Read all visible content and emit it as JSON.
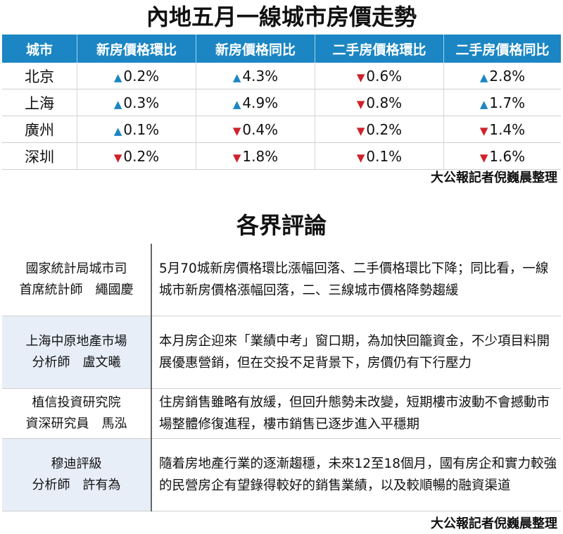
{
  "price_title": "內地五月一線城市房價走勢",
  "price_table": {
    "headers": [
      "城市",
      "新房價格環比",
      "新房價格同比",
      "二手房價格環比",
      "二手房價格同比"
    ],
    "rows": [
      {
        "city": "北京",
        "cells": [
          {
            "dir": "▲",
            "value": "0.2%"
          },
          {
            "dir": "▲",
            "value": "4.3%"
          },
          {
            "dir": "▼",
            "value": "0.6%"
          },
          {
            "dir": "▲",
            "value": "2.8%"
          }
        ]
      },
      {
        "city": "上海",
        "cells": [
          {
            "dir": "▲",
            "value": "0.3%"
          },
          {
            "dir": "▲",
            "value": "4.9%"
          },
          {
            "dir": "▼",
            "value": "0.8%"
          },
          {
            "dir": "▲",
            "value": "1.7%"
          }
        ]
      },
      {
        "city": "廣州",
        "cells": [
          {
            "dir": "▲",
            "value": "0.1%"
          },
          {
            "dir": "▼",
            "value": "0.4%"
          },
          {
            "dir": "▼",
            "value": "0.2%"
          },
          {
            "dir": "▼",
            "value": "1.4%"
          }
        ]
      },
      {
        "city": "深圳",
        "cells": [
          {
            "dir": "▼",
            "value": "0.2%"
          },
          {
            "dir": "▼",
            "value": "1.8%"
          },
          {
            "dir": "▼",
            "value": "0.1%"
          },
          {
            "dir": "▼",
            "value": "1.6%"
          }
        ]
      }
    ],
    "colors": {
      "header_bg": "#1b86c3",
      "up": "#1b86c3",
      "down": "#d0212a"
    }
  },
  "credit_1": "大公報記者倪巍晨整理",
  "comments_title": "各界評論",
  "comments": [
    {
      "org": "國家統計局城市司",
      "role": "首席統計師　繩國慶",
      "text": "5月70城新房價格環比漲幅回落、二手價格環比下降；同比看，一線城市新房價格漲幅回落，二、三線城市價格降勢趨緩"
    },
    {
      "org": "上海中原地產市場",
      "role": "分析師　盧文曦",
      "text": "本月房企迎來「業績中考」窗口期，為加快回籠資金，不少項目料開展優惠營銷，但在交投不足背景下，房價仍有下行壓力"
    },
    {
      "org": "植信投資研究院",
      "role": "資深研究員　馬泓",
      "text": "住房銷售雖略有放緩，但回升態勢未改變，短期樓市波動不會撼動市場整體修復進程，樓市銷售已逐步進入平穩期"
    },
    {
      "org": "穆迪評級",
      "role": "分析師　許有為",
      "text": "隨着房地產行業的逐漸趨穩，未來12至18個月，國有房企和實力較強的民營房企有望錄得較好的銷售業績，以及較順暢的融資渠道"
    }
  ],
  "credit_2": "大公報記者倪巍晨整理"
}
